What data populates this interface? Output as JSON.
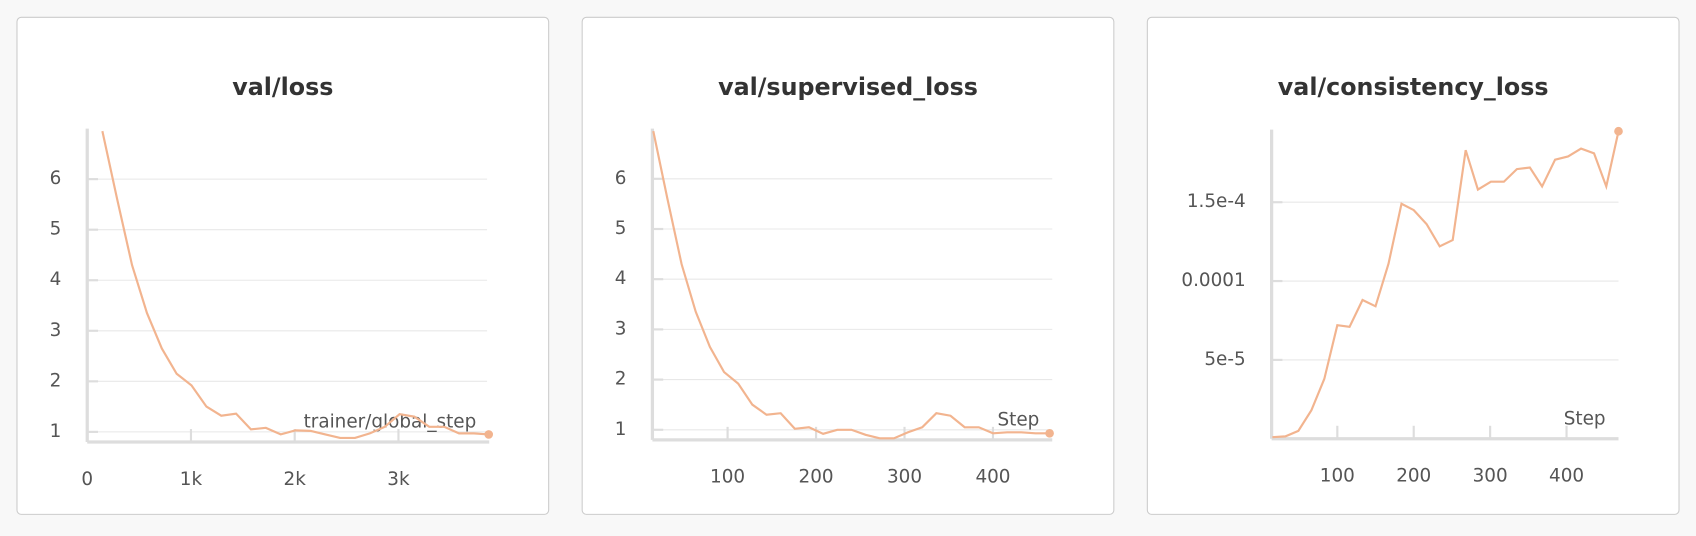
{
  "chart_data": [
    {
      "type": "line",
      "title": "val/loss",
      "x_label": "trainer/global_step",
      "x": [
        146,
        289,
        432,
        576,
        719,
        862,
        1005,
        1149,
        1292,
        1435,
        1578,
        1722,
        1865,
        2008,
        2151,
        2295,
        2438,
        2581,
        2724,
        2868,
        3011,
        3154,
        3297,
        3441,
        3584,
        3727,
        3870
      ],
      "series": [
        {
          "name": "val/loss",
          "color": "#f2b48f",
          "values": [
            6.95,
            5.6,
            4.3,
            3.35,
            2.65,
            2.15,
            1.92,
            1.5,
            1.32,
            1.36,
            1.05,
            1.08,
            0.95,
            1.03,
            1.02,
            0.95,
            0.88,
            0.88,
            0.97,
            1.1,
            1.35,
            1.3,
            1.1,
            1.1,
            0.97,
            0.97,
            0.95
          ]
        }
      ],
      "xlim": [
        0,
        3875
      ],
      "ylim": [
        0.8,
        7
      ],
      "xticks": [
        0,
        {
          "value": 1000,
          "label": "1k"
        },
        {
          "value": 2000,
          "label": "2k"
        },
        {
          "value": 3000,
          "label": "3k"
        }
      ],
      "yticks": [
        1,
        2,
        3,
        4,
        5,
        6
      ],
      "grid": true
    },
    {
      "type": "line",
      "title": "val/supervised_loss",
      "x_label": "Step",
      "x": [
        16,
        32,
        48,
        64,
        80,
        96,
        112,
        128,
        144,
        160,
        176,
        192,
        208,
        224,
        240,
        256,
        272,
        288,
        304,
        320,
        336,
        352,
        368,
        384,
        400,
        416,
        432,
        448,
        464
      ],
      "series": [
        {
          "name": "val/supervised_loss",
          "color": "#f2b48f",
          "values": [
            6.95,
            5.6,
            4.3,
            3.35,
            2.65,
            2.15,
            1.92,
            1.5,
            1.3,
            1.33,
            1.02,
            1.05,
            0.92,
            1.0,
            1.0,
            0.9,
            0.83,
            0.83,
            0.95,
            1.05,
            1.33,
            1.28,
            1.05,
            1.05,
            0.93,
            0.95,
            0.95,
            0.93,
            0.93
          ]
        }
      ],
      "xlim": [
        15,
        467
      ],
      "ylim": [
        0.8,
        7
      ],
      "xticks": [
        100,
        200,
        300,
        400
      ],
      "yticks": [
        1,
        2,
        3,
        4,
        5,
        6
      ],
      "grid": true
    },
    {
      "type": "line",
      "title": "val/consistency_loss",
      "x_label": "Step",
      "x": [
        15,
        32,
        49,
        66,
        83,
        100,
        116,
        133,
        150,
        167,
        184,
        200,
        217,
        234,
        251,
        268,
        284,
        301,
        318,
        335,
        352,
        368,
        385,
        402,
        419,
        436,
        452,
        468
      ],
      "series": [
        {
          "name": "val/consistency_loss",
          "color": "#f2b48f",
          "values": [
            1e-06,
            1.5e-06,
            5e-06,
            1.8e-05,
            3.8e-05,
            7.2e-05,
            7.1e-05,
            8.8e-05,
            8.4e-05,
            0.000111,
            0.000149,
            0.000145,
            0.000136,
            0.000122,
            0.000126,
            0.000183,
            0.000158,
            0.000163,
            0.000163,
            0.000171,
            0.000172,
            0.00016,
            0.000177,
            0.000179,
            0.000184,
            0.000181,
            0.00016,
            0.000195
          ]
        }
      ],
      "xlim": [
        14,
        468
      ],
      "ylim": [
        0,
        0.000196
      ],
      "xticks": [
        100,
        200,
        300,
        400
      ],
      "yticks": [
        {
          "value": 5e-05,
          "label": "5e-5"
        },
        {
          "value": 0.0001,
          "label": "0.0001"
        },
        {
          "value": 0.00015,
          "label": "1.5e-4"
        }
      ],
      "grid": true
    }
  ]
}
